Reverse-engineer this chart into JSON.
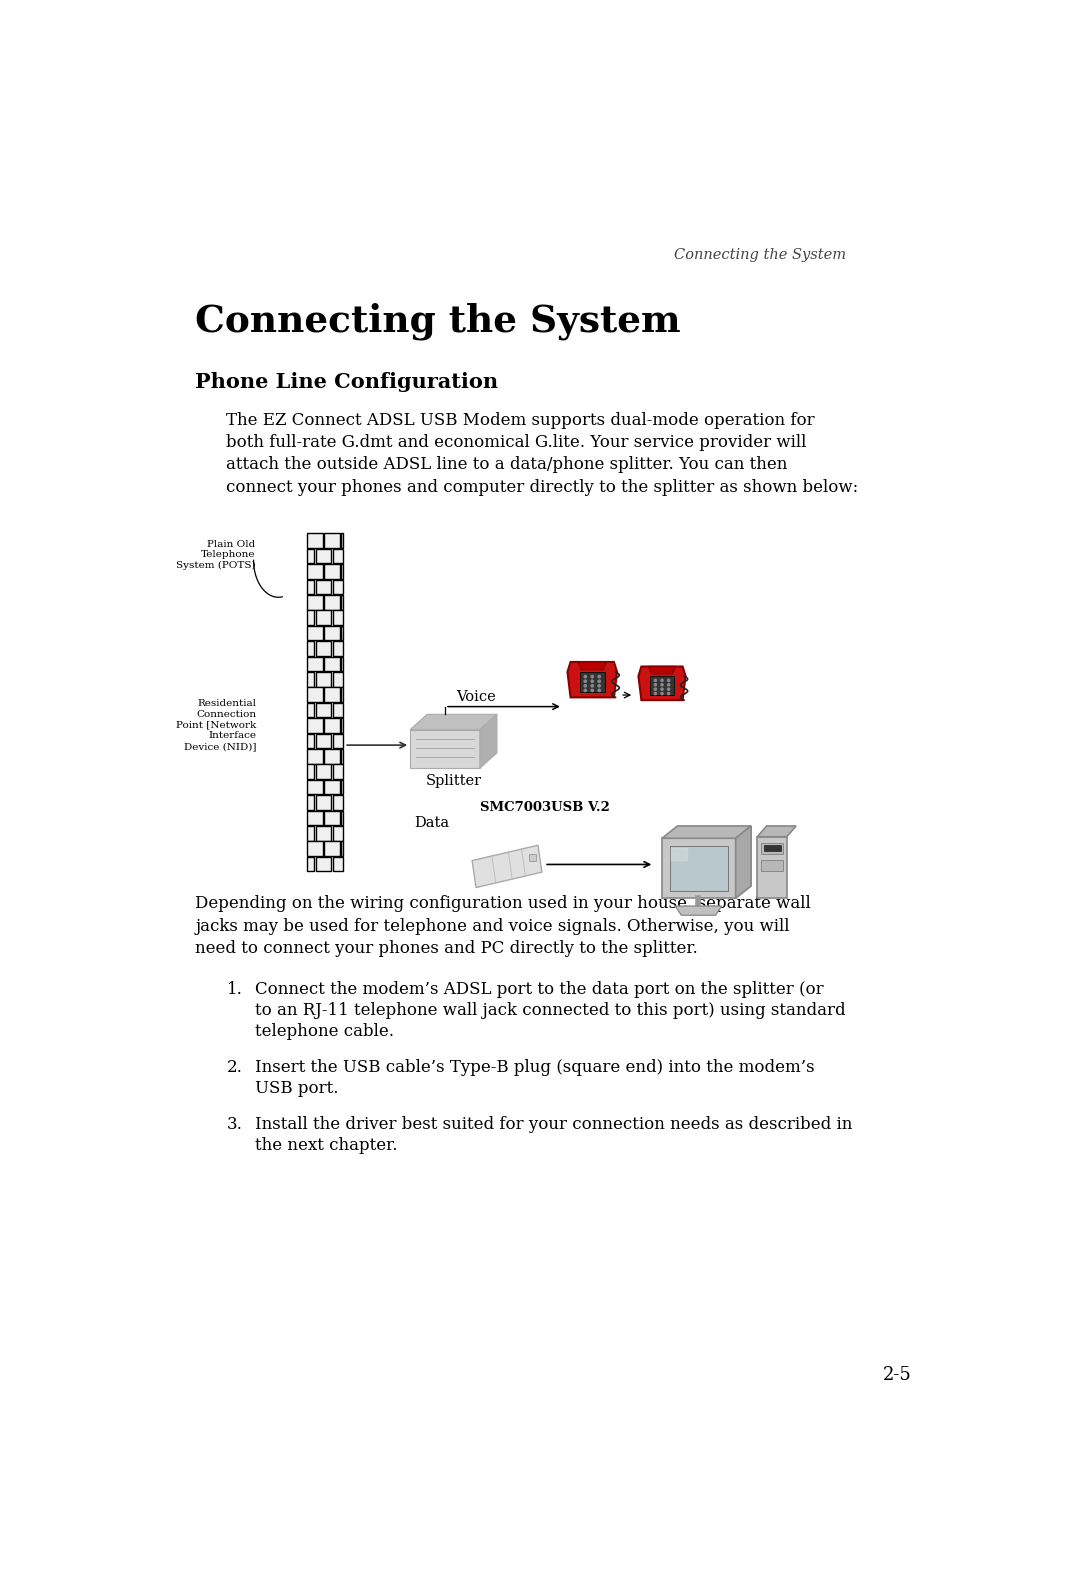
{
  "page_header": "Connecting the System",
  "main_title": "Connecting the System",
  "section_title": "Phone Line Configuration",
  "paragraph1_lines": [
    "The EZ Connect ADSL USB Modem supports dual-mode operation for",
    "both full-rate G.dmt and economical G.lite. Your service provider will",
    "attach the outside ADSL line to a data/phone splitter. You can then",
    "connect your phones and computer directly to the splitter as shown below:"
  ],
  "paragraph2_lines": [
    "Depending on the wiring configuration used in your house, separate wall",
    "jacks may be used for telephone and voice signals. Otherwise, you will",
    "need to connect your phones and PC directly to the splitter."
  ],
  "list_items": [
    [
      "Connect the modem’s ADSL port to the data port on the splitter (or",
      "to an RJ-11 telephone wall jack connected to this port) using standard",
      "telephone cable."
    ],
    [
      "Insert the USB cable’s Type-B plug (square end) into the modem’s",
      "USB port."
    ],
    [
      "Install the driver best suited for your connection needs as described in",
      "the next chapter."
    ]
  ],
  "page_number": "2-5",
  "label_pots": [
    "Plain Old",
    "Telephone",
    "System (POTS)"
  ],
  "label_nid": [
    "Residential",
    "Connection",
    "Point [Network",
    "Interface",
    "Device (NID)]"
  ],
  "label_splitter": "Splitter",
  "label_voice": "Voice",
  "label_data": "Data",
  "label_smc": "SMC7003USB V.2",
  "bg_color": "#ffffff",
  "text_color": "#000000"
}
